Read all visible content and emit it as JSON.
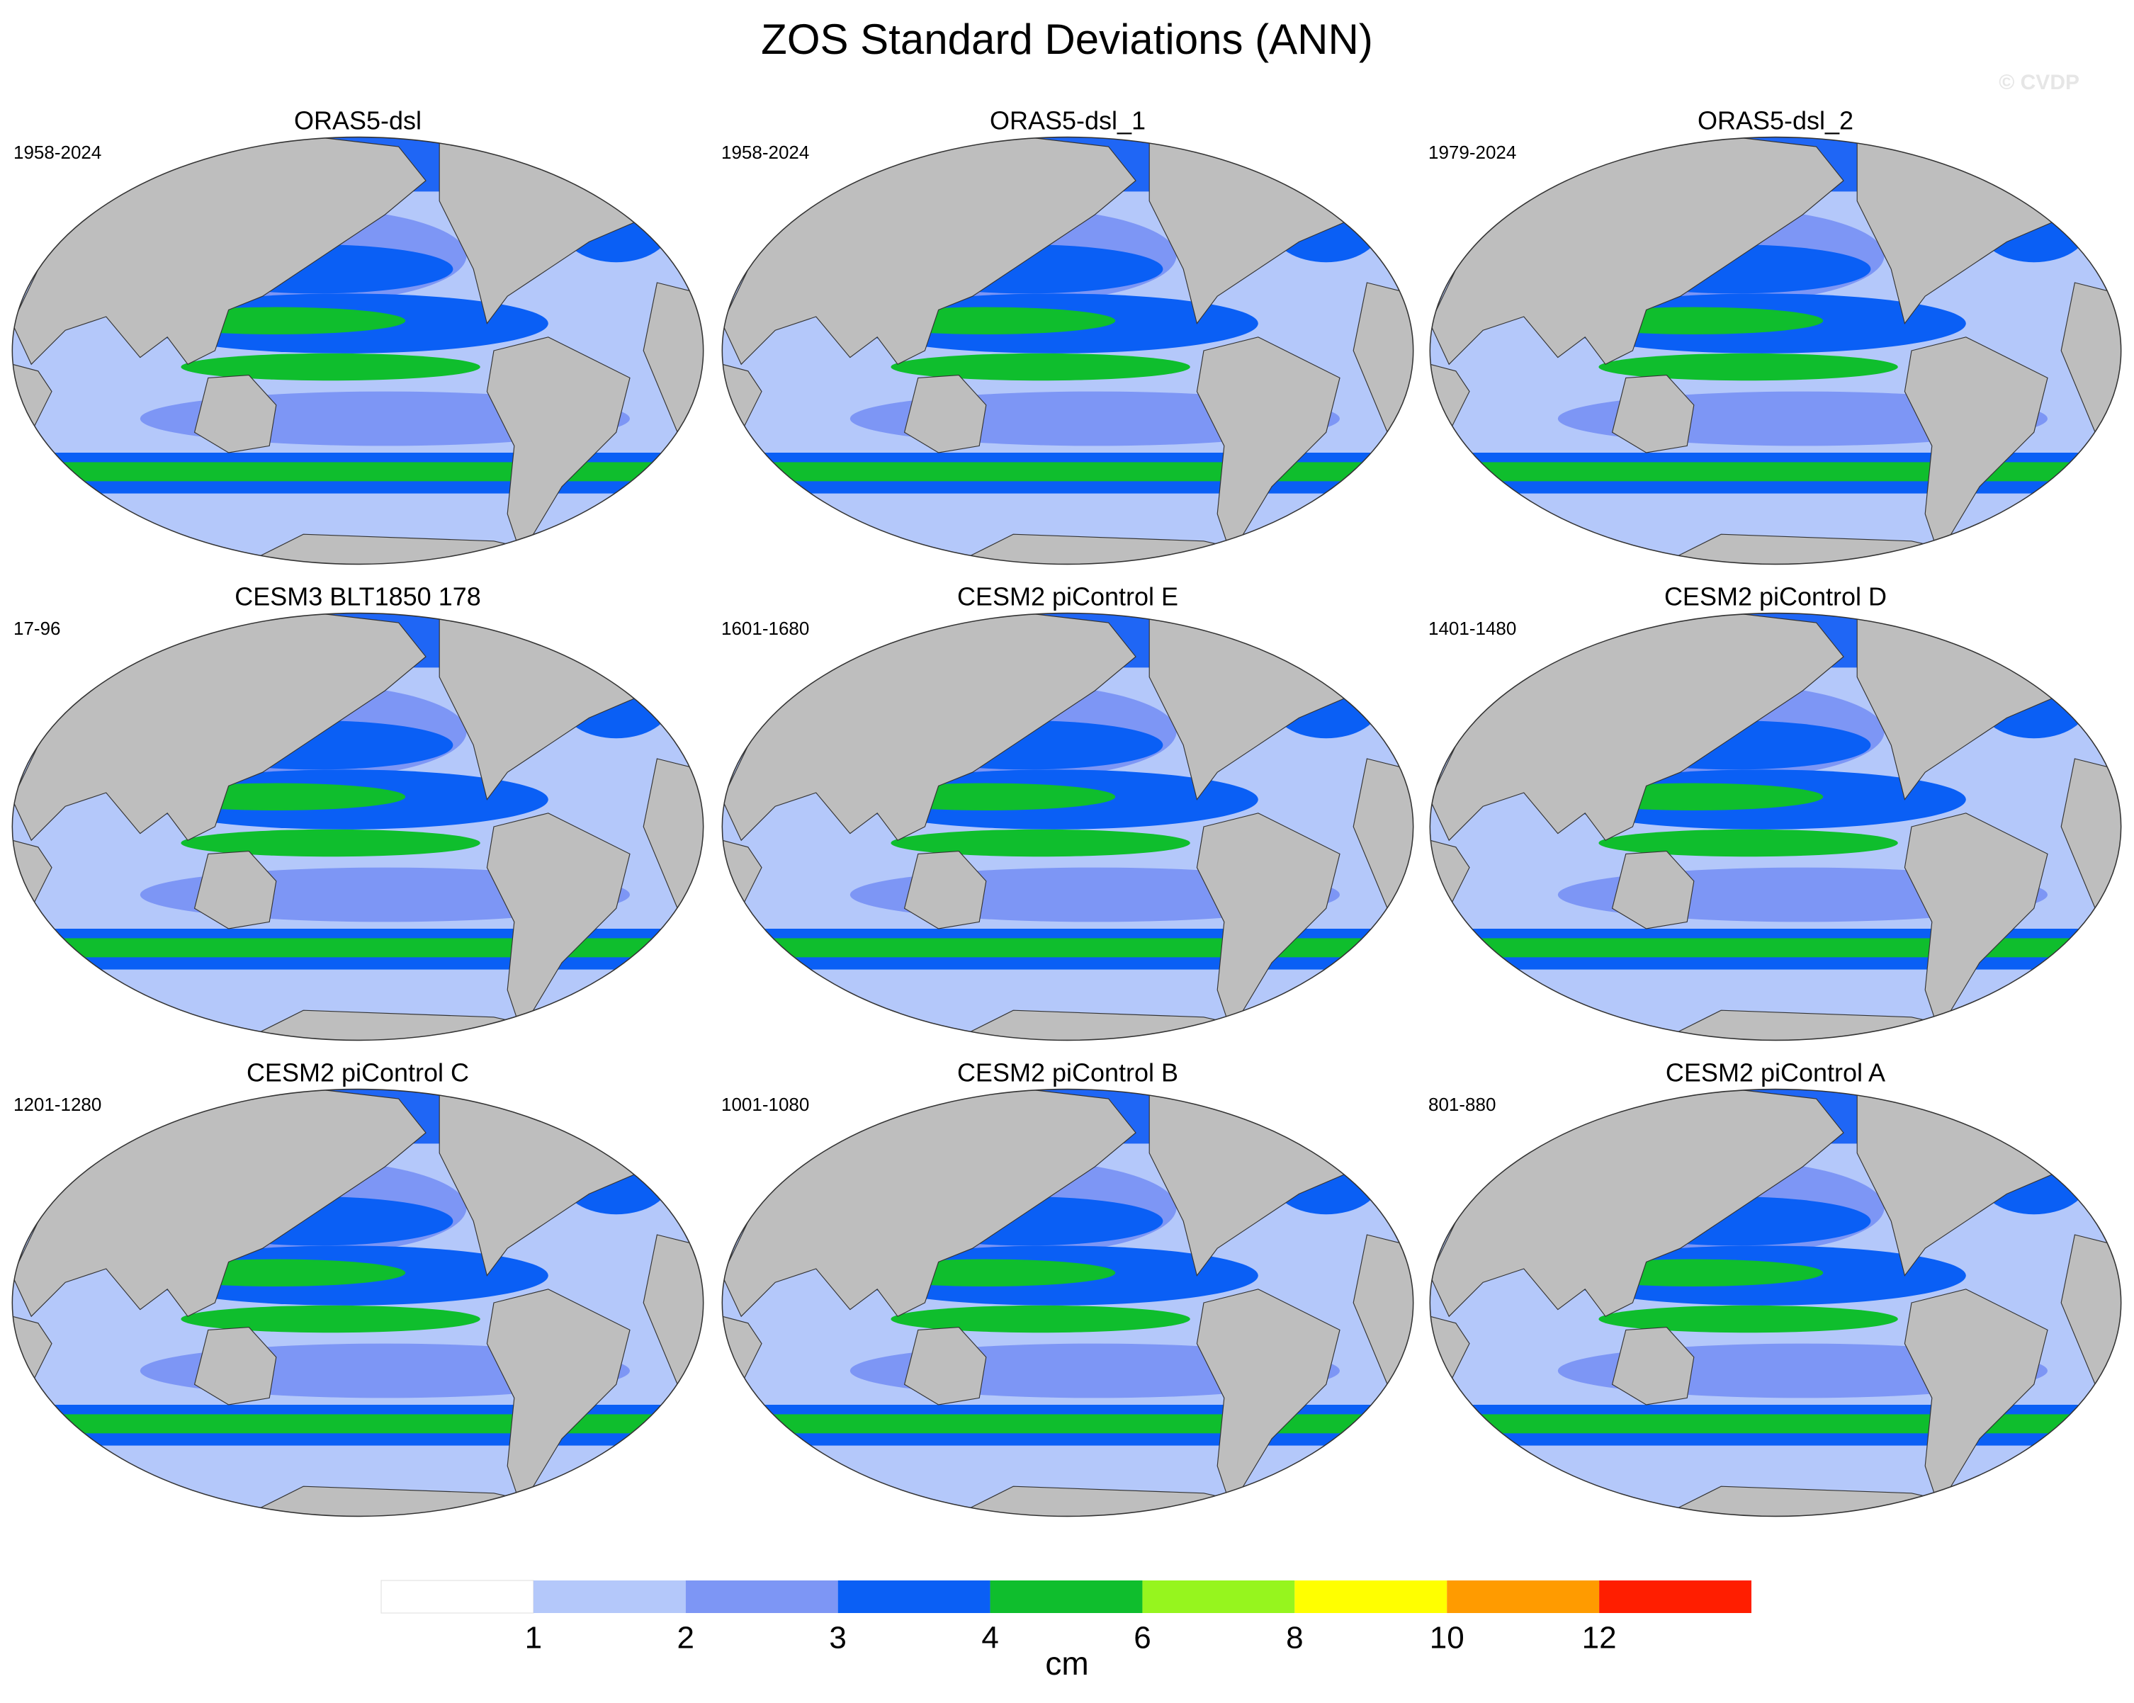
{
  "title": "ZOS Standard Deviations (ANN)",
  "watermark": "© CVDP",
  "panels": [
    {
      "title": "ORAS5-dsl",
      "period": "1958-2024"
    },
    {
      "title": "ORAS5-dsl_1",
      "period": "1958-2024"
    },
    {
      "title": "ORAS5-dsl_2",
      "period": "1979-2024"
    },
    {
      "title": "CESM3 BLT1850 178",
      "period": "17-96"
    },
    {
      "title": "CESM2 piControl E",
      "period": "1601-1680"
    },
    {
      "title": "CESM2 piControl D",
      "period": "1401-1480"
    },
    {
      "title": "CESM2 piControl C",
      "period": "1201-1280"
    },
    {
      "title": "CESM2 piControl B",
      "period": "1001-1080"
    },
    {
      "title": "CESM2 piControl A",
      "period": "801-880"
    }
  ],
  "colorbar": {
    "colors": [
      "#ffffff",
      "#b4c8fa",
      "#7d96f5",
      "#0a5ff5",
      "#0fbe2d",
      "#96f51e",
      "#ffff00",
      "#ff9b00",
      "#ff1e00"
    ],
    "ticks": [
      1,
      2,
      3,
      4,
      6,
      8,
      10,
      12
    ],
    "unit": "cm"
  }
}
